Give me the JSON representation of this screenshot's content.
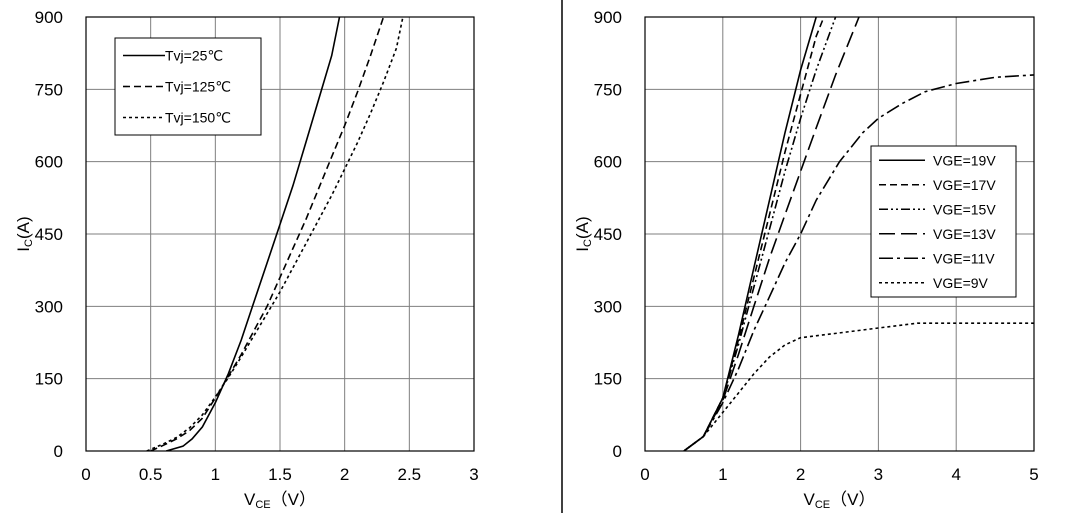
{
  "chart_data": [
    {
      "type": "line",
      "xlabel": "V",
      "xlabel_sub": "CE",
      "xlabel_unit": "（V）",
      "ylabel": "I",
      "ylabel_sub": "C",
      "ylabel_unit": "(A)",
      "xlim": [
        0,
        3
      ],
      "ylim": [
        0,
        900
      ],
      "xticks": [
        "0",
        "0.5",
        "1",
        "1.5",
        "2",
        "2.5",
        "3"
      ],
      "yticks": [
        "0",
        "150",
        "300",
        "450",
        "600",
        "750",
        "900"
      ],
      "grid": true,
      "legend_position": "top-left",
      "series": [
        {
          "name": "Tvj=25℃",
          "dash": "solid",
          "x": [
            0.62,
            0.75,
            0.82,
            0.9,
            1.0,
            1.1,
            1.2,
            1.3,
            1.4,
            1.5,
            1.6,
            1.7,
            1.8,
            1.9,
            1.96
          ],
          "y": [
            0,
            10,
            25,
            50,
            100,
            160,
            230,
            310,
            390,
            470,
            550,
            640,
            730,
            820,
            900
          ]
        },
        {
          "name": "Tvj=125℃",
          "dash": "dashed",
          "x": [
            0.5,
            0.6,
            0.7,
            0.8,
            0.9,
            1.0,
            1.1,
            1.2,
            1.3,
            1.4,
            1.5,
            1.6,
            1.7,
            1.8,
            1.9,
            2.0,
            2.1,
            2.2,
            2.3
          ],
          "y": [
            0,
            12,
            25,
            42,
            68,
            110,
            155,
            200,
            250,
            300,
            360,
            420,
            480,
            545,
            610,
            675,
            745,
            820,
            900
          ]
        },
        {
          "name": "Tvj=150℃",
          "dash": "dotted",
          "x": [
            0.47,
            0.6,
            0.7,
            0.8,
            0.9,
            1.0,
            1.1,
            1.2,
            1.3,
            1.4,
            1.5,
            1.6,
            1.7,
            1.8,
            1.9,
            2.0,
            2.1,
            2.2,
            2.3,
            2.4,
            2.45
          ],
          "y": [
            0,
            15,
            28,
            48,
            75,
            112,
            152,
            195,
            240,
            285,
            330,
            380,
            430,
            480,
            530,
            585,
            640,
            700,
            765,
            835,
            900
          ]
        }
      ]
    },
    {
      "type": "line",
      "xlabel": "V",
      "xlabel_sub": "CE",
      "xlabel_unit": "（V）",
      "ylabel": "I",
      "ylabel_sub": "C",
      "ylabel_unit": "(A)",
      "xlim": [
        0,
        5
      ],
      "ylim": [
        0,
        900
      ],
      "xticks": [
        "0",
        "1",
        "2",
        "3",
        "4",
        "5"
      ],
      "yticks": [
        "0",
        "150",
        "300",
        "450",
        "600",
        "750",
        "900"
      ],
      "grid": true,
      "legend_position": "right",
      "series": [
        {
          "name": "VGE=19V",
          "dash": "solid",
          "x": [
            0.5,
            0.75,
            1.0,
            1.2,
            1.4,
            1.6,
            1.8,
            2.0,
            2.2
          ],
          "y": [
            0,
            30,
            110,
            240,
            380,
            520,
            660,
            790,
            900
          ]
        },
        {
          "name": "VGE=17V",
          "dash": "dashed",
          "x": [
            0.5,
            0.75,
            1.0,
            1.2,
            1.4,
            1.6,
            1.8,
            2.0,
            2.2,
            2.3
          ],
          "y": [
            0,
            30,
            110,
            230,
            360,
            490,
            620,
            740,
            860,
            900
          ]
        },
        {
          "name": "VGE=15V",
          "dash": "dashdotdot",
          "x": [
            0.5,
            0.75,
            1.0,
            1.2,
            1.4,
            1.6,
            1.8,
            2.0,
            2.2,
            2.45
          ],
          "y": [
            0,
            30,
            110,
            220,
            340,
            460,
            580,
            690,
            790,
            900
          ]
        },
        {
          "name": "VGE=13V",
          "dash": "longdash",
          "x": [
            0.5,
            0.75,
            1.0,
            1.2,
            1.4,
            1.6,
            1.8,
            2.0,
            2.2,
            2.45,
            2.75
          ],
          "y": [
            0,
            30,
            105,
            200,
            300,
            400,
            490,
            580,
            670,
            780,
            900
          ]
        },
        {
          "name": "VGE=11V",
          "dash": "dashdot",
          "x": [
            0.5,
            0.75,
            1.0,
            1.2,
            1.4,
            1.6,
            1.8,
            2.0,
            2.2,
            2.5,
            2.8,
            3.0,
            3.3,
            3.6,
            4.0,
            4.5,
            5.0
          ],
          "y": [
            0,
            30,
            100,
            170,
            250,
            320,
            390,
            450,
            520,
            600,
            660,
            690,
            720,
            745,
            762,
            775,
            780
          ]
        },
        {
          "name": "VGE=9V",
          "dash": "dotted",
          "x": [
            0.5,
            0.75,
            1.0,
            1.2,
            1.4,
            1.6,
            1.8,
            2.0,
            2.5,
            3.0,
            3.5,
            4.0,
            4.5,
            5.0
          ],
          "y": [
            0,
            30,
            80,
            120,
            160,
            195,
            220,
            235,
            245,
            255,
            265,
            265,
            265,
            265
          ]
        }
      ]
    }
  ]
}
